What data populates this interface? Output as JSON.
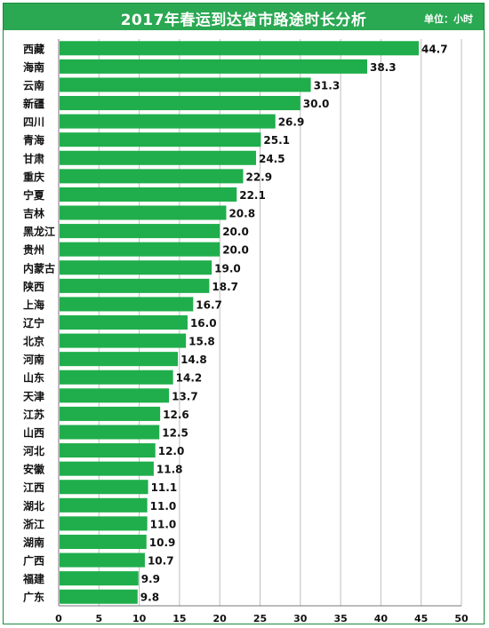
{
  "chart_data": {
    "type": "bar",
    "orientation": "horizontal",
    "title": "2017年春运到达省市路途时长分析",
    "unit": "单位：小时",
    "categories": [
      "西藏",
      "海南",
      "云南",
      "新疆",
      "四川",
      "青海",
      "甘肃",
      "重庆",
      "宁夏",
      "吉林",
      "黑龙江",
      "贵州",
      "内蒙古",
      "陕西",
      "上海",
      "辽宁",
      "北京",
      "河南",
      "山东",
      "天津",
      "江苏",
      "山西",
      "河北",
      "安徽",
      "江西",
      "湖北",
      "浙江",
      "湖南",
      "广西",
      "福建",
      "广东"
    ],
    "values": [
      44.7,
      38.3,
      31.3,
      30.0,
      26.9,
      25.1,
      24.5,
      22.9,
      22.1,
      20.8,
      20.0,
      20.0,
      19.0,
      18.7,
      16.7,
      16.0,
      15.8,
      14.8,
      14.2,
      13.7,
      12.6,
      12.5,
      12.0,
      11.8,
      11.1,
      11.0,
      11.0,
      10.9,
      10.7,
      9.9,
      9.8
    ],
    "value_labels": [
      "44.7",
      "38.3",
      "31.3",
      "30.0",
      "26.9",
      "25.1",
      "24.5",
      "22.9",
      "22.1",
      "20.8",
      "20.0",
      "20.0",
      "19.0",
      "18.7",
      "16.7",
      "16.0",
      "15.8",
      "14.8",
      "14.2",
      "13.7",
      "12.6",
      "12.5",
      "12.0",
      "11.8",
      "11.1",
      "11.0",
      "11.0",
      "10.9",
      "10.7",
      "9.9",
      "9.8"
    ],
    "xlim": [
      0,
      50
    ],
    "xticks": [
      "0",
      "5",
      "10",
      "15",
      "20",
      "25",
      "30",
      "35",
      "40",
      "45",
      "50"
    ],
    "grid": true,
    "bar_color": "#1fae4b",
    "header_color": "#2aa852"
  }
}
